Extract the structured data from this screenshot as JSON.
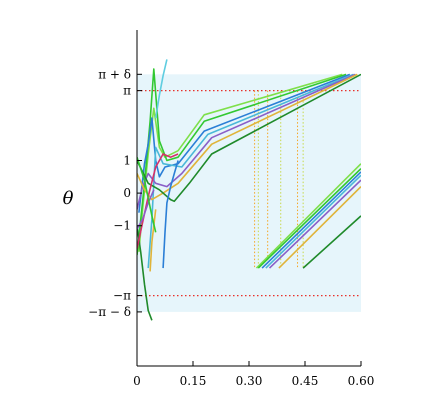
{
  "chart_data": {
    "type": "line",
    "title": "",
    "xlabel": "",
    "ylabel": "θ",
    "xlim": [
      0,
      0.6
    ],
    "ylim": [
      -5.3,
      5.0
    ],
    "x_ticks": [
      {
        "value": 0,
        "label": "0"
      },
      {
        "value": 0.15,
        "label": "0.15"
      },
      {
        "value": 0.3,
        "label": "0.30"
      },
      {
        "value": 0.45,
        "label": "0.45"
      },
      {
        "value": 0.6,
        "label": "0.60"
      }
    ],
    "y_ticks": [
      {
        "value": 3.6416,
        "label": "π + δ"
      },
      {
        "value": 3.1416,
        "label": "π"
      },
      {
        "value": 1,
        "label": "1"
      },
      {
        "value": 0,
        "label": "0"
      },
      {
        "value": -1,
        "label": "−1"
      },
      {
        "value": -3.1416,
        "label": "−π"
      },
      {
        "value": -3.6416,
        "label": "−π − δ"
      }
    ],
    "shaded_region": {
      "x": [
        0,
        0.6
      ],
      "y": [
        -3.6416,
        3.6416
      ],
      "color": "#e6f5fb"
    },
    "reference_lines": [
      {
        "y": 3.1416,
        "color": "#e8302a"
      },
      {
        "y": -3.1416,
        "color": "#e8302a"
      }
    ],
    "vertical_guides": [
      {
        "x": 0.315,
        "color": "#f5a623"
      },
      {
        "x": 0.325,
        "color": "#c8d94a"
      },
      {
        "x": 0.35,
        "color": "#f5a623"
      },
      {
        "x": 0.385,
        "color": "#c8d94a"
      },
      {
        "x": 0.43,
        "color": "#f5a623"
      },
      {
        "x": 0.445,
        "color": "#c8d94a"
      }
    ],
    "series": [
      {
        "color": "#7ee04a",
        "points": [
          [
            0.005,
            -1.8
          ],
          [
            0.015,
            -0.5
          ],
          [
            0.03,
            1.2
          ],
          [
            0.045,
            2.6
          ],
          [
            0.06,
            1.4
          ],
          [
            0.075,
            1.1
          ],
          [
            0.11,
            1.3
          ],
          [
            0.18,
            2.4
          ],
          [
            0.55,
            3.64
          ]
        ],
        "points2": [
          [
            0.32,
            -2.3
          ],
          [
            0.6,
            0.9
          ]
        ]
      },
      {
        "color": "#32c832",
        "points": [
          [
            0.0,
            -1.9
          ],
          [
            0.02,
            0.3
          ],
          [
            0.035,
            2.2
          ],
          [
            0.045,
            3.8
          ],
          [
            0.06,
            1.6
          ],
          [
            0.08,
            1.0
          ],
          [
            0.11,
            1.1
          ],
          [
            0.18,
            2.2
          ],
          [
            0.56,
            3.64
          ]
        ],
        "points2": [
          [
            0.325,
            -2.3
          ],
          [
            0.6,
            0.75
          ]
        ]
      },
      {
        "color": "#2b7fd6",
        "points": [
          [
            0.005,
            -0.6
          ],
          [
            0.02,
            0.9
          ],
          [
            0.03,
            1.5
          ],
          [
            0.04,
            2.3
          ],
          [
            0.05,
            1.0
          ],
          [
            0.06,
            0.5
          ],
          [
            0.075,
            0.8
          ],
          [
            0.11,
            0.9
          ],
          [
            0.18,
            1.9
          ],
          [
            0.57,
            3.64
          ]
        ],
        "points2": [
          [
            0.335,
            -2.3
          ],
          [
            0.6,
            0.65
          ]
        ]
      },
      {
        "color": "#4ab8d8",
        "points": [
          [
            0.03,
            -2.3
          ],
          [
            0.04,
            -0.8
          ],
          [
            0.05,
            1.4
          ],
          [
            0.07,
            0.9
          ],
          [
            0.12,
            0.8
          ],
          [
            0.19,
            1.8
          ],
          [
            0.58,
            3.64
          ]
        ],
        "points2": [
          [
            0.345,
            -2.3
          ],
          [
            0.6,
            0.55
          ]
        ]
      },
      {
        "color": "#8a5fc7",
        "points": [
          [
            0.0,
            -0.5
          ],
          [
            0.015,
            0.2
          ],
          [
            0.03,
            0.6
          ],
          [
            0.05,
            0.3
          ],
          [
            0.08,
            0.2
          ],
          [
            0.12,
            0.6
          ],
          [
            0.2,
            1.7
          ],
          [
            0.585,
            3.64
          ]
        ],
        "points2": [
          [
            0.355,
            -2.3
          ],
          [
            0.6,
            0.4
          ]
        ]
      },
      {
        "color": "#e0b43a",
        "points": [
          [
            0.0,
            0.6
          ],
          [
            0.02,
            0.1
          ],
          [
            0.04,
            -0.2
          ],
          [
            0.07,
            0.0
          ],
          [
            0.11,
            0.3
          ],
          [
            0.2,
            1.5
          ],
          [
            0.59,
            3.64
          ]
        ],
        "points2": [
          [
            0.38,
            -2.3
          ],
          [
            0.6,
            0.2
          ]
        ]
      },
      {
        "color": "#1f8a2a",
        "points": [
          [
            0.0,
            -1.0
          ],
          [
            0.01,
            -1.8
          ],
          [
            0.02,
            -2.8
          ],
          [
            0.03,
            -3.6
          ],
          [
            0.04,
            -3.9
          ]
        ],
        "points2": [
          [
            0.0,
            1.0
          ],
          [
            0.03,
            0.3
          ],
          [
            0.06,
            0.1
          ],
          [
            0.09,
            -0.2
          ],
          [
            0.1,
            -0.25
          ],
          [
            0.14,
            0.3
          ],
          [
            0.2,
            1.2
          ],
          [
            0.6,
            3.64
          ]
        ],
        "points3": [
          [
            0.445,
            -2.3
          ],
          [
            0.6,
            -0.7
          ]
        ]
      },
      {
        "color": "#d6306a",
        "points": [
          [
            0.0,
            -1.7
          ],
          [
            0.015,
            -0.9
          ],
          [
            0.03,
            -0.1
          ],
          [
            0.05,
            0.8
          ],
          [
            0.07,
            1.2
          ],
          [
            0.09,
            1.1
          ],
          [
            0.11,
            1.2
          ]
        ]
      },
      {
        "color": "#2b7fd6",
        "points": [
          [
            0.07,
            -2.3
          ],
          [
            0.075,
            -1.2
          ],
          [
            0.08,
            -0.3
          ],
          [
            0.09,
            0.2
          ],
          [
            0.1,
            0.6
          ],
          [
            0.11,
            1.0
          ]
        ]
      },
      {
        "color": "#5fcde0",
        "points": [
          [
            0.05,
            2.3
          ],
          [
            0.06,
            3.0
          ],
          [
            0.07,
            3.6
          ],
          [
            0.08,
            4.1
          ]
        ]
      },
      {
        "color": "#8a5fc7",
        "points": [
          [
            0.0,
            -1.1
          ],
          [
            0.015,
            -0.8
          ],
          [
            0.03,
            -0.3
          ],
          [
            0.045,
            0.1
          ]
        ]
      },
      {
        "color": "#e0b43a",
        "points": [
          [
            0.035,
            -2.4
          ],
          [
            0.04,
            -1.5
          ],
          [
            0.05,
            -0.5
          ]
        ]
      },
      {
        "color": "#32c832",
        "points": [
          [
            0.0,
            1.1
          ],
          [
            0.02,
            0.4
          ],
          [
            0.04,
            -0.7
          ],
          [
            0.05,
            -1.2
          ]
        ]
      }
    ]
  }
}
